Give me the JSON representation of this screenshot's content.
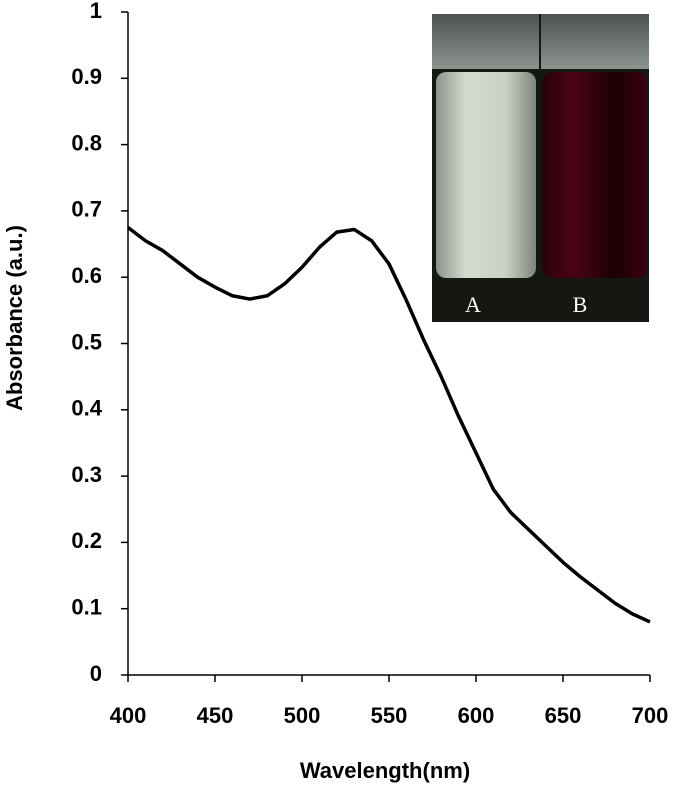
{
  "chart_data": {
    "type": "line",
    "x_label": "Wavelength(nm)",
    "y_label": "Absorbance (a.u.)",
    "x": [
      400,
      410,
      420,
      430,
      440,
      450,
      460,
      470,
      480,
      490,
      500,
      510,
      520,
      530,
      540,
      550,
      560,
      570,
      580,
      590,
      600,
      610,
      620,
      630,
      640,
      650,
      660,
      670,
      680,
      690,
      700
    ],
    "values": [
      0.675,
      0.655,
      0.64,
      0.62,
      0.6,
      0.585,
      0.572,
      0.567,
      0.572,
      0.59,
      0.615,
      0.645,
      0.668,
      0.672,
      0.655,
      0.62,
      0.565,
      0.505,
      0.45,
      0.39,
      0.335,
      0.28,
      0.245,
      0.22,
      0.195,
      0.17,
      0.148,
      0.128,
      0.108,
      0.092,
      0.08
    ],
    "color": "#000000",
    "xlim": [
      400,
      700
    ],
    "xticks": [
      400,
      450,
      500,
      550,
      600,
      650,
      700
    ],
    "ylim": [
      0,
      1
    ],
    "yticks": [
      0,
      0.1,
      0.2,
      0.3,
      0.4,
      0.5,
      0.6,
      0.7,
      0.8,
      0.9,
      1
    ],
    "inset_labels": [
      "A",
      "B"
    ]
  }
}
